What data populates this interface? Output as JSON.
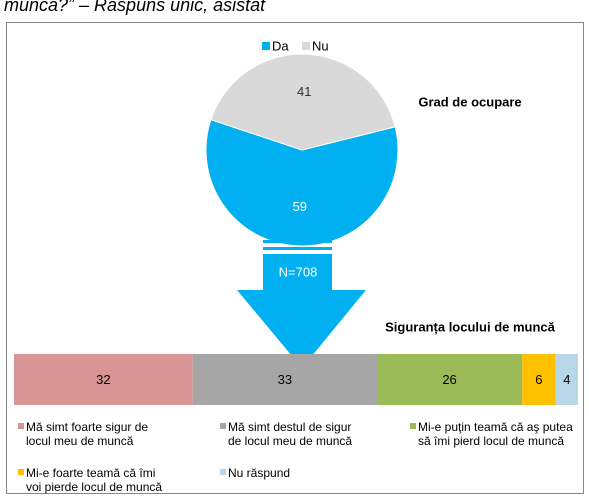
{
  "caption": "muncă?” – Răspuns unic, asistat",
  "chart_data": [
    {
      "type": "pie",
      "title": "Grad de ocupare",
      "annotation": "N=708",
      "categories": [
        "Da",
        "Nu"
      ],
      "values": [
        59,
        41
      ],
      "colors": [
        "#00b0f0",
        "#d9d9d9"
      ],
      "legend": "top"
    },
    {
      "type": "stacked_bar",
      "title": "Siguranța locului de muncă",
      "categories": [
        null
      ],
      "legend": "bottom",
      "series": [
        {
          "name": "Mă simt foarte sigur de\nlocul meu de muncă",
          "color": "#d99594",
          "values": [
            32
          ]
        },
        {
          "name": "Mă simt destul de sigur\nde locul meu de muncă",
          "color": "#a6a6a6",
          "values": [
            33
          ]
        },
        {
          "name": "Mi-e puţin teamă că aş putea\nsă îmi pierd locul de muncă",
          "color": "#9bbb59",
          "values": [
            26
          ]
        },
        {
          "name": "Mi-e foarte teamă că îmi\nvoi pierde locul de muncă",
          "color": "#ffc000",
          "values": [
            6
          ]
        },
        {
          "name": "Nu răspund",
          "color": "#b7d7e8",
          "values": [
            4
          ]
        }
      ]
    }
  ]
}
